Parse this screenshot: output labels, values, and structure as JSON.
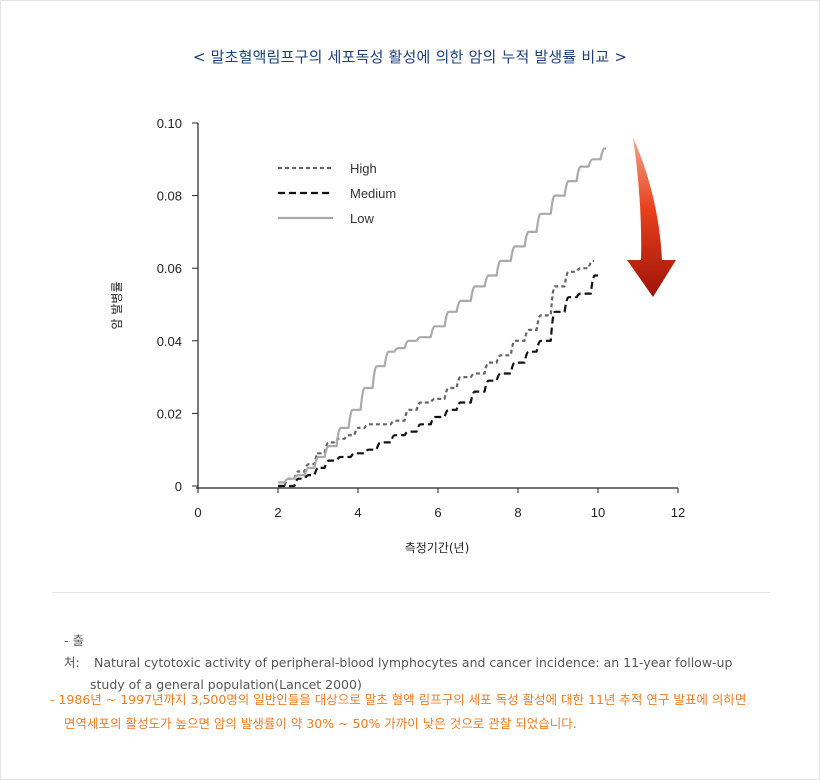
{
  "title": "< 말초혈액림프구의 세포독성 활성에 의한 암의 누적 발생률 비교 >",
  "chart_data": {
    "type": "line",
    "xlabel": "측정기간(년)",
    "ylabel": "암 발병률",
    "xlim": [
      0,
      12
    ],
    "ylim": [
      0,
      0.1
    ],
    "x_ticks": [
      "0",
      "2",
      "4",
      "6",
      "8",
      "10",
      "12"
    ],
    "y_ticks": [
      "0",
      "0.02",
      "0.04",
      "0.06",
      "0.08",
      "0.10"
    ],
    "legend_position": "top-left",
    "series": [
      {
        "name": "High",
        "style": "dotted",
        "color": "#666666",
        "x": [
          2.0,
          2.3,
          2.5,
          2.8,
          3.0,
          3.3,
          3.5,
          3.8,
          4.0,
          4.3,
          4.6,
          5.0,
          5.3,
          5.6,
          6.0,
          6.3,
          6.6,
          7.0,
          7.3,
          7.6,
          8.0,
          8.3,
          8.6,
          9.0,
          9.3,
          9.6,
          9.9
        ],
        "y": [
          0.0,
          0.002,
          0.004,
          0.006,
          0.009,
          0.012,
          0.013,
          0.014,
          0.016,
          0.017,
          0.017,
          0.018,
          0.021,
          0.023,
          0.024,
          0.027,
          0.03,
          0.031,
          0.034,
          0.036,
          0.04,
          0.043,
          0.047,
          0.055,
          0.059,
          0.06,
          0.062
        ]
      },
      {
        "name": "Medium",
        "style": "dashed",
        "color": "#111111",
        "x": [
          2.0,
          2.3,
          2.5,
          2.8,
          3.0,
          3.3,
          3.6,
          4.0,
          4.3,
          4.6,
          5.0,
          5.3,
          5.6,
          6.0,
          6.3,
          6.6,
          7.0,
          7.3,
          7.6,
          8.0,
          8.3,
          8.6,
          9.0,
          9.3,
          9.6,
          10.0
        ],
        "y": [
          0.0,
          0.0,
          0.002,
          0.003,
          0.005,
          0.007,
          0.008,
          0.009,
          0.01,
          0.012,
          0.014,
          0.015,
          0.017,
          0.019,
          0.021,
          0.023,
          0.026,
          0.029,
          0.031,
          0.034,
          0.037,
          0.04,
          0.048,
          0.052,
          0.053,
          0.058
        ]
      },
      {
        "name": "Low",
        "style": "solid",
        "color": "#aaaaaa",
        "x": [
          2.0,
          2.3,
          2.5,
          2.8,
          3.0,
          3.3,
          3.6,
          3.9,
          4.2,
          4.5,
          4.8,
          5.0,
          5.3,
          5.6,
          6.0,
          6.3,
          6.6,
          7.0,
          7.3,
          7.6,
          8.0,
          8.3,
          8.6,
          9.0,
          9.3,
          9.6,
          9.9,
          10.2
        ],
        "y": [
          0.001,
          0.002,
          0.003,
          0.005,
          0.008,
          0.011,
          0.016,
          0.021,
          0.027,
          0.033,
          0.037,
          0.038,
          0.04,
          0.041,
          0.044,
          0.048,
          0.051,
          0.055,
          0.058,
          0.062,
          0.066,
          0.07,
          0.075,
          0.08,
          0.084,
          0.088,
          0.09,
          0.093
        ]
      }
    ]
  },
  "arrow_color": "#d42a10",
  "source": {
    "label": "- 출처:",
    "line1": "Natural cytotoxic activity of peripheral-blood lymphocytes and cancer incidence: an 11-year follow-up",
    "line2": "study of a general population(Lancet 2000)"
  },
  "note": {
    "line1": "- 1986년 ~ 1997년까지 3,500명의 일반인들을 대상으로 말초 혈액 림프구의 세포 독성 활성에 대한 11년 추적 연구 발표에 의하면",
    "line2": "면역세포의 활성도가 높으면 암의 발생률이 약 30% ~ 50% 가까이 낮은 것으로 관찰 되었습니다."
  }
}
